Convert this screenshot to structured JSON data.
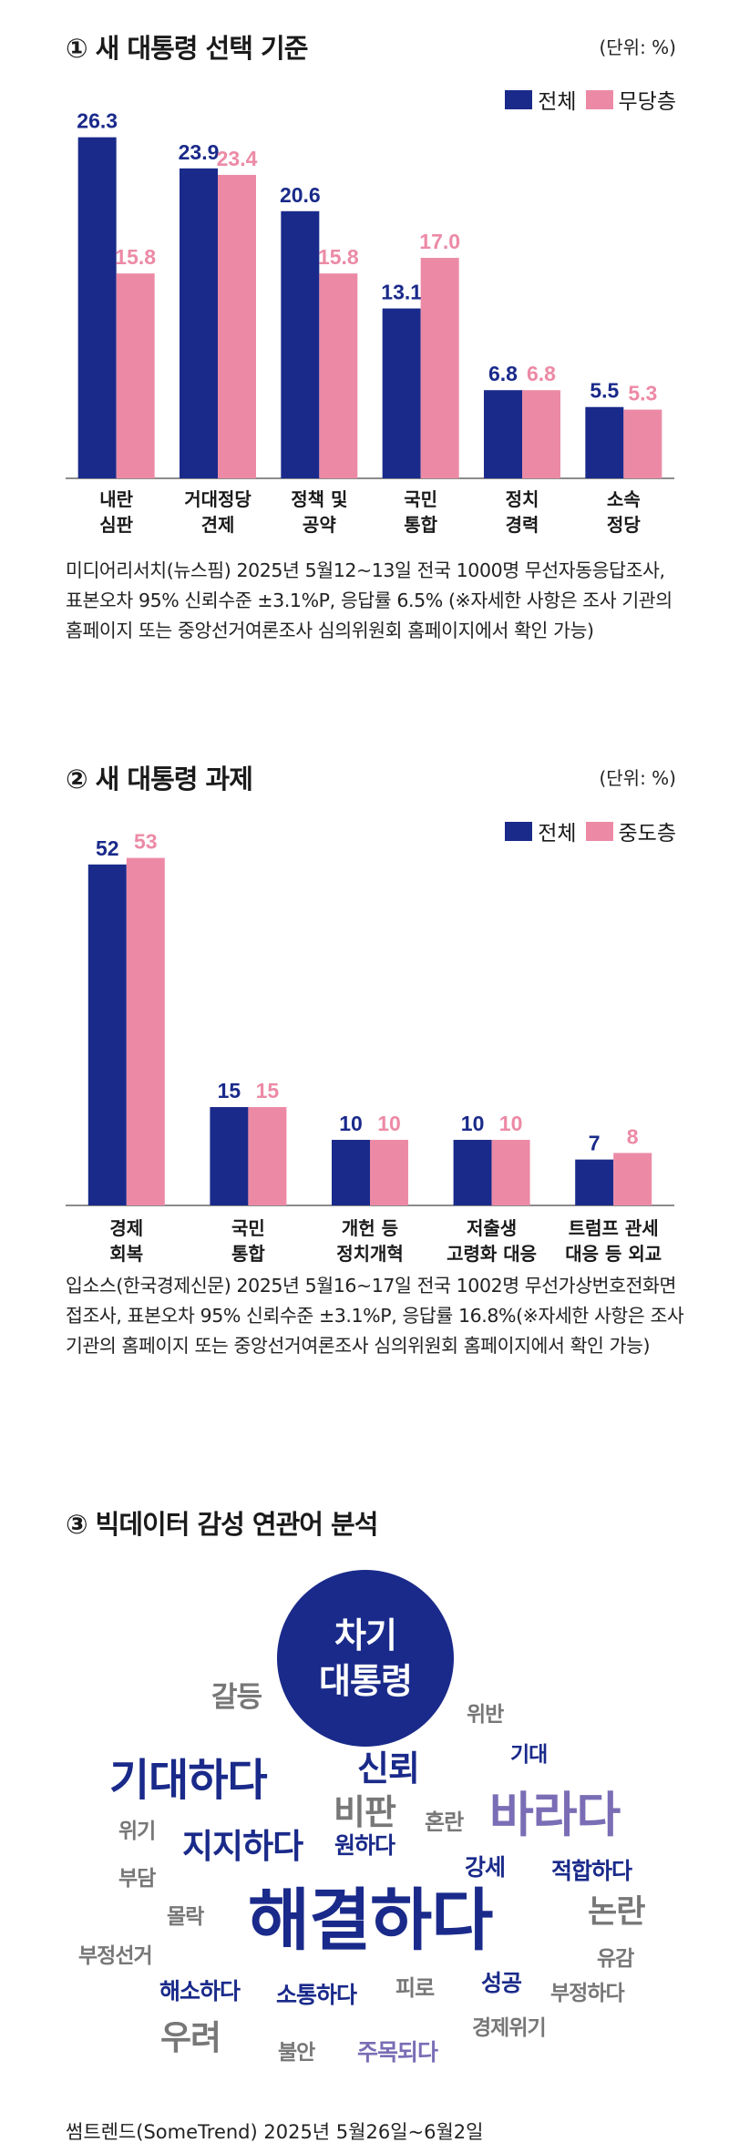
{
  "colors": {
    "navy": "#1a2a8a",
    "pink": "#ec8aa6",
    "grey": "#777777",
    "purple": "#7a6db5"
  },
  "chart1": {
    "title": "① 새 대통령 선택 기준",
    "unit": "(단위: %)",
    "note": "미디어리서치(뉴스핌) 2025년 5월12~13일 전국 1000명 무선자동응답조사, 표본오차 95% 신뢰수준 ±3.1%P, 응답률 6.5% (※자세한 사항은 조사 기관의 홈페이지 또는 중앙선거여론조사 심의위원회 홈페이지에서 확인 가능)"
  },
  "chart2": {
    "title": "② 새 대통령 과제",
    "unit": "(단위: %)",
    "note": "입소스(한국경제신문) 2025년 5월16~17일 전국 1002명 무선가상번호전화면접조사, 표본오차 95% 신뢰수준 ±3.1%P, 응답률 16.8%(※자세한 사항은 조사 기관의 홈페이지 또는 중앙선거여론조사 심의위원회 홈페이지에서 확인 가능)"
  },
  "chart_data": [
    {
      "type": "bar",
      "title": "① 새 대통령 선택 기준",
      "unit": "(단위: %)",
      "categories": [
        [
          "내란",
          "심판"
        ],
        [
          "거대정당",
          "견제"
        ],
        [
          "정책 및",
          "공약"
        ],
        [
          "국민",
          "통합"
        ],
        [
          "정치",
          "경력"
        ],
        [
          "소속",
          "정당"
        ]
      ],
      "series": [
        {
          "name": "전체",
          "values": [
            26.3,
            23.9,
            20.6,
            13.1,
            6.8,
            5.5
          ],
          "labels": [
            "26.3",
            "23.9",
            "20.6",
            "13.1",
            "6.8",
            "5.5"
          ]
        },
        {
          "name": "무당층",
          "values": [
            15.8,
            23.4,
            15.8,
            17.0,
            6.8,
            5.3
          ],
          "labels": [
            "15.8",
            "23.4",
            "15.8",
            "17.0",
            "6.8",
            "5.3"
          ]
        }
      ],
      "ylim": [
        0,
        30
      ]
    },
    {
      "type": "bar",
      "title": "② 새 대통령 과제",
      "unit": "(단위: %)",
      "categories": [
        [
          "경제",
          "회복"
        ],
        [
          "국민",
          "통합"
        ],
        [
          "개헌 등",
          "정치개혁"
        ],
        [
          "저출생",
          "고령화 대응"
        ],
        [
          "트럼프 관세",
          "대응 등 외교"
        ]
      ],
      "series": [
        {
          "name": "전체",
          "values": [
            52,
            15,
            10,
            10,
            7
          ],
          "labels": [
            "52",
            "15",
            "10",
            "10",
            "7"
          ]
        },
        {
          "name": "중도층",
          "values": [
            53,
            15,
            10,
            10,
            8
          ],
          "labels": [
            "53",
            "15",
            "10",
            "10",
            "8"
          ]
        }
      ],
      "ylim": [
        0,
        56
      ]
    }
  ],
  "wordcloud": {
    "title": "③ 빅데이터 감성 연관어 분석",
    "center": [
      "차기",
      "대통령"
    ],
    "words": [
      {
        "text": "갈등",
        "tone": "grey"
      },
      {
        "text": "위반",
        "tone": "grey"
      },
      {
        "text": "기대",
        "tone": "navy"
      },
      {
        "text": "기대하다",
        "tone": "navy"
      },
      {
        "text": "신뢰",
        "tone": "navy"
      },
      {
        "text": "비판",
        "tone": "grey"
      },
      {
        "text": "바라다",
        "tone": "purple"
      },
      {
        "text": "위기",
        "tone": "grey"
      },
      {
        "text": "혼란",
        "tone": "grey"
      },
      {
        "text": "지지하다",
        "tone": "navy"
      },
      {
        "text": "원하다",
        "tone": "navy"
      },
      {
        "text": "강세",
        "tone": "navy"
      },
      {
        "text": "적합하다",
        "tone": "navy"
      },
      {
        "text": "부담",
        "tone": "grey"
      },
      {
        "text": "해결하다",
        "tone": "navy"
      },
      {
        "text": "논란",
        "tone": "grey"
      },
      {
        "text": "몰락",
        "tone": "grey"
      },
      {
        "text": "부정선거",
        "tone": "grey"
      },
      {
        "text": "유감",
        "tone": "grey"
      },
      {
        "text": "해소하다",
        "tone": "navy"
      },
      {
        "text": "소통하다",
        "tone": "navy"
      },
      {
        "text": "피로",
        "tone": "grey"
      },
      {
        "text": "성공",
        "tone": "navy"
      },
      {
        "text": "부정하다",
        "tone": "grey"
      },
      {
        "text": "우려",
        "tone": "grey"
      },
      {
        "text": "불안",
        "tone": "grey"
      },
      {
        "text": "주목되다",
        "tone": "purple"
      },
      {
        "text": "경제위기",
        "tone": "grey"
      }
    ],
    "source": "썸트렌드(SomeTrend) 2025년 5월26일~6월2일"
  }
}
